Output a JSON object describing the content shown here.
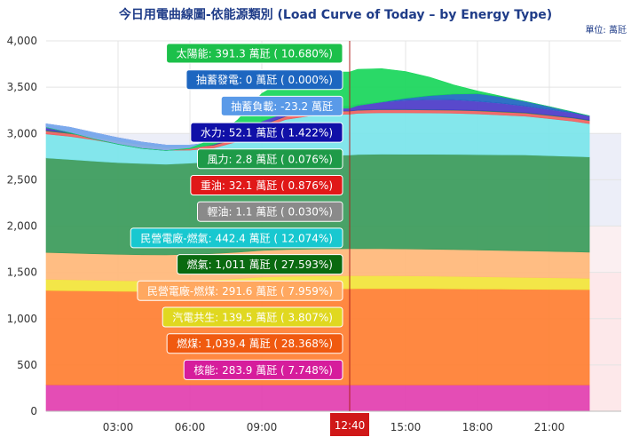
{
  "chart_data": {
    "type": "area",
    "stacked": true,
    "title": "今日用電曲線圖-依能源類別 (Load Curve of Today – by Energy Type)",
    "unit_label": "單位: 萬瓩",
    "ylim": [
      0,
      4000
    ],
    "y_ticks": [
      0,
      500,
      1000,
      1500,
      2000,
      2500,
      3000,
      3500,
      4000
    ],
    "y_tick_labels": [
      "0",
      "500",
      "1,000",
      "1,500",
      "2,000",
      "2,500",
      "3,000",
      "3,500",
      "4,000"
    ],
    "xlim_hours": [
      0,
      24
    ],
    "x_ticks": [
      3,
      6,
      9,
      15,
      18,
      21
    ],
    "x_tick_labels": [
      "03:00",
      "06:00",
      "09:00",
      "15:00",
      "18:00",
      "21:00"
    ],
    "cursor": {
      "hour": 12.6667,
      "label": "12:40"
    },
    "data_end_hour": 22.67,
    "bands": [
      {
        "from": 0,
        "to": 1500,
        "color": "#fde8ea"
      },
      {
        "from": 1500,
        "to": 2000,
        "color": "#fbeff1"
      },
      {
        "from": 2000,
        "to": 3000,
        "color": "#eceef8"
      }
    ],
    "hours": [
      0,
      1,
      2,
      3,
      4,
      5,
      6,
      7,
      8,
      9,
      10,
      11,
      12,
      12.67,
      13,
      14,
      15,
      16,
      17,
      18,
      19,
      20,
      21,
      22,
      22.67
    ],
    "series": [
      {
        "name": "核能",
        "color": "#e23fb0",
        "tip": "核能: 283.9 萬瓩 ( 7.748%)",
        "values": [
          285,
          284,
          284,
          284,
          284,
          284,
          284,
          284,
          284,
          284,
          284,
          284,
          284,
          284,
          284,
          284,
          284,
          284,
          284,
          284,
          284,
          284,
          284,
          284,
          283
        ]
      },
      {
        "name": "燃煤",
        "color": "#ff7f32",
        "tip": "燃煤: 1,039.4 萬瓩 ( 28.368%)",
        "values": [
          1020,
          1018,
          1015,
          1012,
          1010,
          1010,
          1012,
          1015,
          1020,
          1030,
          1035,
          1038,
          1039,
          1039,
          1040,
          1040,
          1040,
          1040,
          1038,
          1036,
          1035,
          1033,
          1032,
          1030,
          1030
        ]
      },
      {
        "name": "汽電共生",
        "color": "#f2e53a",
        "tip": "汽電共生: 139.5 萬瓩 ( 3.807%)",
        "values": [
          120,
          118,
          116,
          115,
          114,
          114,
          116,
          120,
          128,
          134,
          137,
          138,
          139,
          140,
          141,
          140,
          138,
          136,
          134,
          132,
          130,
          128,
          126,
          124,
          122
        ]
      },
      {
        "name": "民營電廠-燃煤",
        "color": "#ffb87a",
        "tip": "民營電廠-燃煤: 291.6 萬瓩 ( 7.959%)",
        "values": [
          290,
          288,
          286,
          284,
          282,
          280,
          282,
          284,
          286,
          288,
          290,
          291,
          292,
          292,
          292,
          292,
          291,
          290,
          290,
          289,
          288,
          287,
          285,
          284,
          283
        ]
      },
      {
        "name": "燃氣",
        "color": "#3a9b5a",
        "tip": "燃氣: 1,011 萬瓩 ( 27.593%)",
        "values": [
          1020,
          1010,
          1000,
          990,
          985,
          980,
          985,
          990,
          995,
          1000,
          1005,
          1008,
          1011,
          1011,
          1015,
          1020,
          1022,
          1025,
          1028,
          1030,
          1032,
          1035,
          1033,
          1030,
          1028
        ]
      },
      {
        "name": "民營電廠-燃氣",
        "color": "#7ae5ea",
        "tip": "民營電廠-燃氣: 442.4 萬瓩 ( 12.074%)",
        "values": [
          260,
          250,
          230,
          200,
          170,
          150,
          140,
          150,
          200,
          320,
          400,
          430,
          442,
          442,
          445,
          448,
          448,
          446,
          444,
          440,
          430,
          420,
          400,
          380,
          360
        ]
      },
      {
        "name": "輕油",
        "color": "#999999",
        "tip": "輕油: 1.1 萬瓩 ( 0.030%)",
        "values": [
          1,
          1,
          1,
          1,
          1,
          1,
          1,
          1,
          1,
          1,
          1,
          1,
          1.1,
          1.1,
          1,
          1,
          1,
          1,
          1,
          1,
          1,
          1,
          1,
          1,
          1
        ]
      },
      {
        "name": "重油",
        "color": "#f06060",
        "tip": "重油: 32.1 萬瓩 ( 0.876%)",
        "values": [
          30,
          30,
          30,
          30,
          30,
          30,
          30,
          30,
          31,
          32,
          32,
          32,
          32.1,
          32.1,
          32,
          32,
          32,
          32,
          32,
          32,
          32,
          32,
          32,
          32,
          32
        ]
      },
      {
        "name": "風力",
        "color": "#2e8b57",
        "tip": "風力: 2.8 萬瓩 ( 0.076%)",
        "values": [
          8,
          8,
          7,
          7,
          6,
          6,
          5,
          5,
          4,
          3,
          3,
          3,
          2.8,
          2.8,
          3,
          3,
          3,
          4,
          4,
          5,
          5,
          6,
          6,
          6,
          6
        ]
      },
      {
        "name": "水力",
        "color": "#4b3ac8",
        "tip": "水力: 52.1 萬瓩 ( 1.422%)",
        "values": [
          70,
          60,
          40,
          30,
          25,
          20,
          20,
          25,
          30,
          40,
          45,
          50,
          52,
          52,
          60,
          80,
          100,
          110,
          110,
          100,
          90,
          70,
          60,
          50,
          45
        ]
      },
      {
        "name": "抽蓄負載",
        "color": "#7fb2ef",
        "tip": "抽蓄負載: -23.2 萬瓩",
        "values": [
          -40,
          -60,
          -70,
          -70,
          -70,
          -60,
          -40,
          -20,
          -10,
          0,
          -10,
          -20,
          -23,
          -23,
          -10,
          0,
          0,
          0,
          0,
          0,
          0,
          0,
          0,
          0,
          0
        ]
      },
      {
        "name": "抽蓄發電",
        "color": "#1d66c0",
        "tip": "抽蓄發電: 0 萬瓩 ( 0.000%)",
        "values": [
          0,
          0,
          0,
          0,
          0,
          0,
          0,
          0,
          0,
          0,
          0,
          0,
          0,
          0,
          0,
          0,
          20,
          40,
          60,
          80,
          70,
          50,
          30,
          10,
          0
        ]
      },
      {
        "name": "太陽能",
        "color": "#18d65a",
        "tip": "太陽能: 391.3 萬瓩 ( 10.680%)",
        "values": [
          0,
          0,
          0,
          0,
          0,
          0,
          5,
          60,
          180,
          300,
          360,
          385,
          391,
          391,
          390,
          360,
          290,
          200,
          100,
          30,
          5,
          0,
          0,
          0,
          0
        ]
      }
    ],
    "tooltip_order": [
      "太陽能",
      "抽蓄發電",
      "抽蓄負載",
      "水力",
      "風力",
      "重油",
      "輕油",
      "民營電廠-燃氣",
      "燃氣",
      "民營電廠-燃煤",
      "汽電共生",
      "燃煤",
      "核能"
    ],
    "tooltip_colors": {
      "太陽能": "#1cc04a",
      "抽蓄發電": "#1d66c0",
      "抽蓄負載": "#5a9ae8",
      "水力": "#1010a8",
      "風力": "#1e9a48",
      "重油": "#e01818",
      "輕油": "#8a8a8a",
      "民營電廠-燃氣": "#18c8d0",
      "燃氣": "#0a6a10",
      "民營電廠-燃煤": "#ffa860",
      "汽電共生": "#e0d820",
      "燃煤": "#f05a10",
      "核能": "#d61d9c"
    }
  }
}
